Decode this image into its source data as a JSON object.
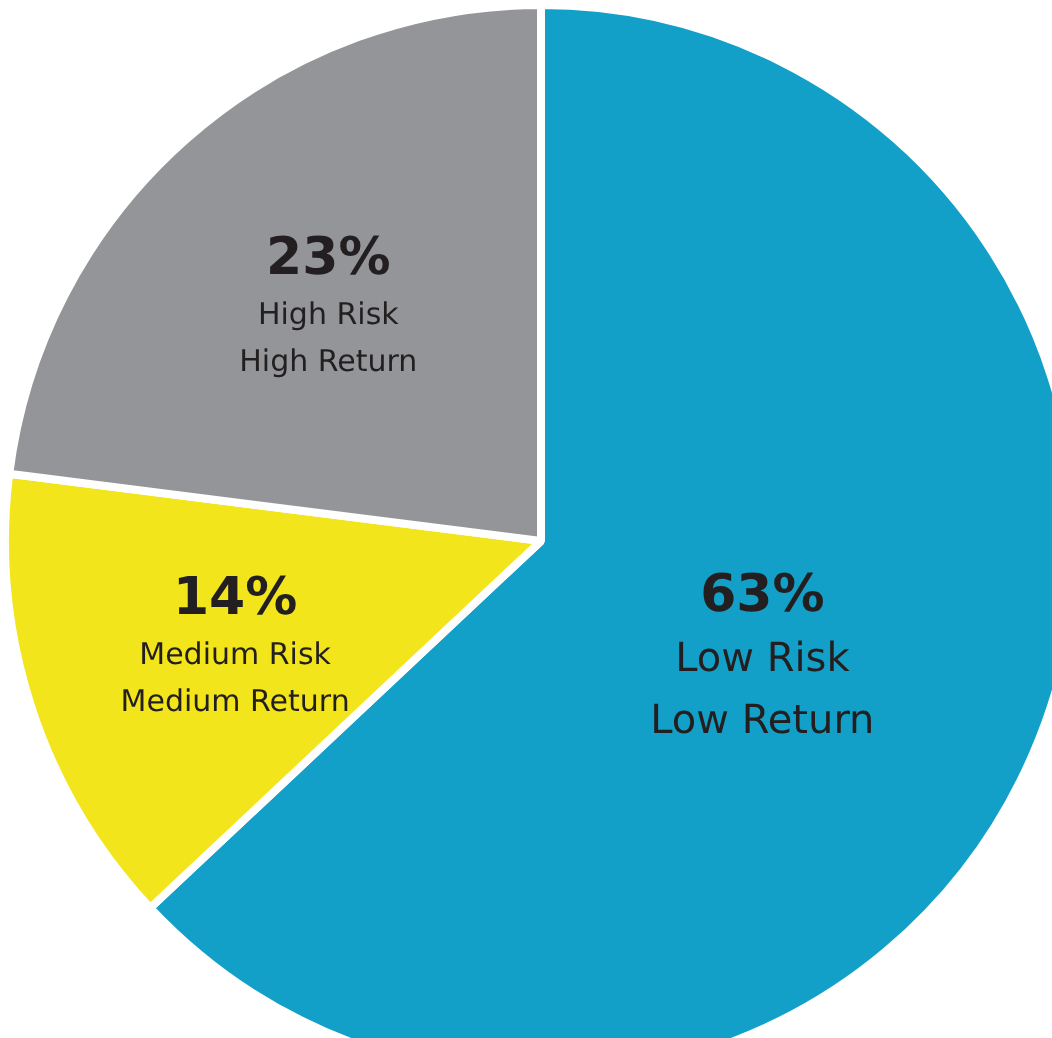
{
  "chart_data": {
    "type": "pie",
    "categories": [
      "Low Risk\nLow Return",
      "Medium Risk\nMedium Return",
      "High Risk\nHigh Return"
    ],
    "values": [
      63,
      14,
      23
    ],
    "colors": [
      "#13a0c8",
      "#f2e51b",
      "#939598"
    ],
    "value_labels": [
      "63%",
      "14%",
      "23%"
    ]
  }
}
